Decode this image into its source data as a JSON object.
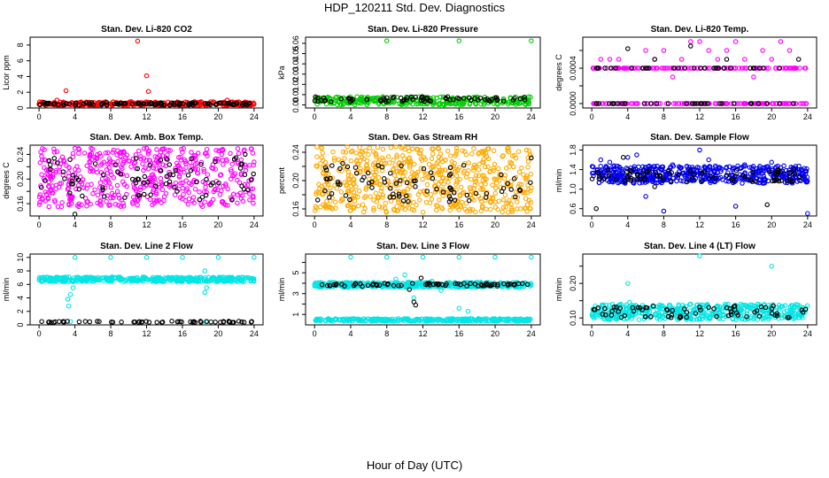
{
  "page": {
    "title": "HDP_120211  Std. Dev. Diagnostics",
    "xlabel": "Hour of Day (UTC)"
  },
  "chart_data": [
    {
      "type": "scatter",
      "title": "Stan. Dev. Li-820 CO2",
      "ylabel": "Licor ppm",
      "xlim": [
        -1,
        25
      ],
      "ylim": [
        0,
        9
      ],
      "xticks": [
        0,
        4,
        8,
        12,
        16,
        20,
        24
      ],
      "xtick_labels": [
        "0",
        "4",
        "8",
        "12",
        "16",
        "20",
        "24"
      ],
      "yticks": [
        0,
        2,
        4,
        6,
        8
      ],
      "ytick_labels": [
        "0",
        "2",
        "4",
        "6",
        "8"
      ],
      "series": [
        {
          "name": "primary",
          "color": "#ff0000",
          "points": [
            [
              0,
              0.5
            ],
            [
              1,
              0.55
            ],
            [
              2,
              1.0
            ],
            [
              3,
              2.2
            ],
            [
              4,
              0.6
            ],
            [
              6,
              0.5
            ],
            [
              8,
              0.55
            ],
            [
              10,
              0.6
            ],
            [
              11,
              8.5
            ],
            [
              12,
              4.1
            ],
            [
              12.2,
              2.1
            ],
            [
              14,
              0.6
            ],
            [
              16,
              0.55
            ],
            [
              18,
              0.5
            ],
            [
              20,
              0.6
            ],
            [
              21,
              1.0
            ],
            [
              22,
              0.6
            ],
            [
              24,
              0.5
            ]
          ],
          "band": {
            "x": [
              0,
              24
            ],
            "y": [
              0.3,
              0.8
            ],
            "n": 280
          }
        },
        {
          "name": "secondary",
          "color": "#000000",
          "points": [
            [
              1,
              0.5
            ],
            [
              3,
              0.6
            ],
            [
              5,
              0.55
            ],
            [
              7,
              0.5
            ],
            [
              9,
              0.6
            ],
            [
              11,
              0.55
            ],
            [
              13,
              0.5
            ],
            [
              15,
              0.6
            ],
            [
              17,
              0.55
            ],
            [
              19,
              0.5
            ],
            [
              21,
              0.6
            ],
            [
              23,
              0.5
            ]
          ],
          "band": {
            "x": [
              0,
              24
            ],
            "y": [
              0.35,
              0.7
            ],
            "n": 90
          }
        }
      ]
    },
    {
      "type": "scatter",
      "title": "Stan. Dev. Li-820 Pressure",
      "ylabel": "kPa",
      "xlim": [
        -1,
        25
      ],
      "ylim": [
        -0.003,
        0.066
      ],
      "xticks": [
        0,
        4,
        8,
        12,
        16,
        20,
        24
      ],
      "xtick_labels": [
        "0",
        "4",
        "8",
        "12",
        "16",
        "20",
        "24"
      ],
      "yticks": [
        0,
        0.01,
        0.02,
        0.03,
        0.04,
        0.05,
        0.06
      ],
      "ytick_labels": [
        "0.00",
        "0.01",
        "0.02",
        "0.03",
        "0.04",
        "0.05",
        "0.06"
      ],
      "series": [
        {
          "name": "primary",
          "color": "#00cc00",
          "points": [
            [
              8,
              0.0625
            ],
            [
              16,
              0.0625
            ],
            [
              24,
              0.0625
            ]
          ],
          "band": {
            "x": [
              0,
              24
            ],
            "y": [
              0.0,
              0.008
            ],
            "n": 320
          }
        },
        {
          "name": "secondary",
          "color": "#000000",
          "points": [
            [
              4,
              0.006
            ],
            [
              8,
              0.007
            ],
            [
              12,
              0.005
            ],
            [
              16,
              0.006
            ],
            [
              20,
              0.007
            ]
          ],
          "band": {
            "x": [
              0,
              24
            ],
            "y": [
              0.003,
              0.008
            ],
            "n": 70
          }
        }
      ]
    },
    {
      "type": "scatter",
      "title": "Stan. Dev. Li-820 Temp.",
      "ylabel": "degrees C",
      "xlim": [
        -1,
        25
      ],
      "ylim": [
        -5e-05,
        0.00075
      ],
      "xticks": [
        0,
        4,
        8,
        12,
        16,
        20,
        24
      ],
      "xtick_labels": [
        "0",
        "4",
        "8",
        "12",
        "16",
        "20",
        "24"
      ],
      "yticks": [
        0,
        0.0002,
        0.0004,
        0.0006
      ],
      "ytick_labels": [
        "0.0000",
        "",
        "0.0004",
        ""
      ],
      "series": [
        {
          "name": "primary",
          "color": "#ff00ff",
          "points": [
            [
              1,
              0.0005
            ],
            [
              2,
              0.0005
            ],
            [
              3,
              0.0005
            ],
            [
              6,
              0.0006
            ],
            [
              7,
              0.0005
            ],
            [
              8,
              0.0006
            ],
            [
              9,
              0.0003
            ],
            [
              10,
              0.0005
            ],
            [
              11,
              0.0007
            ],
            [
              12,
              0.0007
            ],
            [
              13,
              0.0006
            ],
            [
              14,
              0.0005
            ],
            [
              15,
              0.0006
            ],
            [
              16,
              0.0007
            ],
            [
              17,
              0.0005
            ],
            [
              18,
              0.0003
            ],
            [
              19,
              0.0006
            ],
            [
              20,
              0.0005
            ],
            [
              21,
              0.0007
            ],
            [
              22,
              0.0006
            ]
          ],
          "levels": [
            0.0,
            0.0004
          ],
          "n": 260
        },
        {
          "name": "secondary",
          "color": "#000000",
          "points": [
            [
              4,
              0.00062
            ],
            [
              7,
              0.0005
            ],
            [
              11,
              0.00065
            ],
            [
              15,
              0.0005
            ],
            [
              23,
              0.0005
            ]
          ],
          "levels": [
            0.0,
            0.0004
          ],
          "n": 60
        }
      ]
    },
    {
      "type": "scatter",
      "title": "Stan. Dev. Amb. Box Temp.",
      "ylabel": "degrees C",
      "xlim": [
        -1,
        25
      ],
      "ylim": [
        0.14,
        0.255
      ],
      "xticks": [
        0,
        4,
        8,
        12,
        16,
        20,
        24
      ],
      "xtick_labels": [
        "0",
        "4",
        "8",
        "12",
        "16",
        "20",
        "24"
      ],
      "yticks": [
        0.16,
        0.18,
        0.2,
        0.22,
        0.24
      ],
      "ytick_labels": [
        "0.16",
        "",
        "0.20",
        "",
        "0.24"
      ],
      "series": [
        {
          "name": "primary",
          "color": "#ff00ff",
          "points": [
            [
              4,
              0.25
            ],
            [
              12,
              0.25
            ]
          ],
          "band": {
            "x": [
              0,
              24
            ],
            "y": [
              0.155,
              0.25
            ],
            "n": 520
          }
        },
        {
          "name": "secondary",
          "color": "#000000",
          "points": [
            [
              4,
              0.143
            ],
            [
              23,
              0.24
            ]
          ],
          "band": {
            "x": [
              0,
              24
            ],
            "y": [
              0.165,
              0.235
            ],
            "n": 80
          }
        }
      ]
    },
    {
      "type": "scatter",
      "title": "Stan. Dev. Gas Stream RH",
      "ylabel": "percent",
      "xlim": [
        -1,
        25
      ],
      "ylim": [
        0.15,
        0.25
      ],
      "xticks": [
        0,
        4,
        8,
        12,
        16,
        20,
        24
      ],
      "xtick_labels": [
        "0",
        "4",
        "8",
        "12",
        "16",
        "20",
        "24"
      ],
      "yticks": [
        0.16,
        0.18,
        0.2,
        0.22,
        0.24
      ],
      "ytick_labels": [
        "0.16",
        "",
        "0.20",
        "",
        "0.24"
      ],
      "series": [
        {
          "name": "primary",
          "color": "#ffaa00",
          "points": [],
          "band": {
            "x": [
              0,
              24
            ],
            "y": [
              0.155,
              0.248
            ],
            "n": 620
          }
        },
        {
          "name": "secondary",
          "color": "#000000",
          "points": [
            [
              24,
              0.232
            ]
          ],
          "band": {
            "x": [
              0,
              24
            ],
            "y": [
              0.17,
              0.225
            ],
            "n": 80
          }
        }
      ]
    },
    {
      "type": "scatter",
      "title": "Stan. Dev. Sample Flow",
      "ylabel": "ml/min",
      "xlim": [
        -1,
        25
      ],
      "ylim": [
        0.45,
        1.9
      ],
      "xticks": [
        0,
        4,
        8,
        12,
        16,
        20,
        24
      ],
      "xtick_labels": [
        "0",
        "4",
        "8",
        "12",
        "16",
        "20",
        "24"
      ],
      "yticks": [
        0.6,
        1.0,
        1.4,
        1.8
      ],
      "ytick_labels": [
        "0.6",
        "1.0",
        "1.4",
        "1.8"
      ],
      "series": [
        {
          "name": "primary",
          "color": "#0000ee",
          "points": [
            [
              1,
              1.6
            ],
            [
              2,
              1.55
            ],
            [
              4,
              1.65
            ],
            [
              5,
              1.7
            ],
            [
              8,
              0.55
            ],
            [
              9,
              1.5
            ],
            [
              12,
              1.8
            ],
            [
              13,
              1.6
            ],
            [
              16,
              0.65
            ],
            [
              17,
              1.5
            ],
            [
              20,
              1.55
            ],
            [
              24,
              0.5
            ],
            [
              6,
              0.85
            ]
          ],
          "band": {
            "x": [
              0,
              24
            ],
            "y": [
              1.12,
              1.48
            ],
            "n": 520
          }
        },
        {
          "name": "secondary",
          "color": "#000000",
          "points": [
            [
              0.5,
              0.6
            ],
            [
              3.5,
              1.65
            ],
            [
              7,
              1.05
            ],
            [
              19.5,
              0.68
            ]
          ],
          "band": {
            "x": [
              0,
              24
            ],
            "y": [
              1.15,
              1.4
            ],
            "n": 80
          }
        }
      ]
    },
    {
      "type": "scatter",
      "title": "Stan. Dev. Line 2 Flow",
      "ylabel": "ml/min",
      "xlim": [
        -1,
        25
      ],
      "ylim": [
        0,
        10.5
      ],
      "xticks": [
        0,
        4,
        8,
        12,
        16,
        20,
        24
      ],
      "xtick_labels": [
        "0",
        "4",
        "8",
        "12",
        "16",
        "20",
        "24"
      ],
      "yticks": [
        0,
        2,
        4,
        6,
        8,
        10
      ],
      "ytick_labels": [
        "0",
        "2",
        "4",
        "6",
        "8",
        "10"
      ],
      "series": [
        {
          "name": "primary",
          "color": "#00e5e5",
          "points": [
            [
              3.2,
              3.8
            ],
            [
              3.3,
              2.8
            ],
            [
              3.5,
              4.5
            ],
            [
              3.8,
              5.5
            ],
            [
              4,
              10
            ],
            [
              8,
              10
            ],
            [
              12,
              10
            ],
            [
              16,
              10
            ],
            [
              18.5,
              8
            ],
            [
              18.7,
              5.5
            ],
            [
              18.5,
              4.8
            ],
            [
              20,
              10
            ],
            [
              24,
              10
            ],
            [
              3.5,
              0.5
            ],
            [
              18.6,
              0.5
            ]
          ],
          "band": {
            "x": [
              0,
              24
            ],
            "y": [
              6.4,
              7.1
            ],
            "n": 420
          }
        },
        {
          "name": "secondary",
          "color": "#000000",
          "points": [],
          "band": {
            "x": [
              0,
              24
            ],
            "y": [
              0.35,
              0.55
            ],
            "n": 60
          }
        }
      ]
    },
    {
      "type": "scatter",
      "title": "Stan. Dev. Line 3 Flow",
      "ylabel": "ml/min",
      "xlim": [
        -1,
        25
      ],
      "ylim": [
        0,
        6.8
      ],
      "xticks": [
        0,
        4,
        8,
        12,
        16,
        20,
        24
      ],
      "xtick_labels": [
        "0",
        "4",
        "8",
        "12",
        "16",
        "20",
        "24"
      ],
      "yticks": [
        1,
        2,
        3,
        4,
        5,
        6
      ],
      "ytick_labels": [
        "1",
        "",
        "3",
        "",
        "5",
        ""
      ],
      "series": [
        {
          "name": "primary",
          "color": "#00e5e5",
          "points": [
            [
              4,
              6.5
            ],
            [
              8,
              6.5
            ],
            [
              12,
              6.5
            ],
            [
              16,
              6.5
            ],
            [
              20,
              6.5
            ],
            [
              24,
              6.5
            ],
            [
              16,
              1.6
            ],
            [
              17,
              1.3
            ],
            [
              9,
              4.4
            ],
            [
              10,
              4.8
            ],
            [
              11,
              2.6
            ],
            [
              13,
              4.2
            ],
            [
              14,
              3.3
            ]
          ],
          "band": {
            "x": [
              0,
              24
            ],
            "y": [
              3.6,
              4.1
            ],
            "n": 420
          },
          "band2": {
            "x": [
              0,
              24
            ],
            "y": [
              0.35,
              0.6
            ],
            "n": 300
          }
        },
        {
          "name": "secondary",
          "color": "#000000",
          "points": [
            [
              11,
              2.2
            ],
            [
              11.2,
              1.9
            ],
            [
              11.8,
              4.5
            ],
            [
              10.5,
              3.4
            ],
            [
              12.5,
              3.9
            ]
          ],
          "band": {
            "x": [
              0,
              24
            ],
            "y": [
              3.7,
              4.0
            ],
            "n": 70
          }
        }
      ]
    },
    {
      "type": "scatter",
      "title": "Stan. Dev. Line 4 (LT) Flow",
      "ylabel": "ml/min",
      "xlim": [
        -1,
        25
      ],
      "ylim": [
        0.08,
        0.285
      ],
      "xticks": [
        0,
        4,
        8,
        12,
        16,
        20,
        24
      ],
      "xtick_labels": [
        "0",
        "4",
        "8",
        "12",
        "16",
        "20",
        "24"
      ],
      "yticks": [
        0.1,
        0.15,
        0.2,
        0.25
      ],
      "ytick_labels": [
        "0.10",
        "",
        "0.20",
        ""
      ],
      "series": [
        {
          "name": "primary",
          "color": "#00e5e5",
          "points": [
            [
              4,
              0.2
            ],
            [
              12,
              0.28
            ],
            [
              20,
              0.25
            ],
            [
              4.2,
              0.145
            ],
            [
              11,
              0.14
            ]
          ],
          "band": {
            "x": [
              0,
              24
            ],
            "y": [
              0.095,
              0.14
            ],
            "n": 480
          }
        },
        {
          "name": "secondary",
          "color": "#000000",
          "points": [],
          "band": {
            "x": [
              0,
              24
            ],
            "y": [
              0.1,
              0.135
            ],
            "n": 70
          }
        }
      ]
    }
  ]
}
